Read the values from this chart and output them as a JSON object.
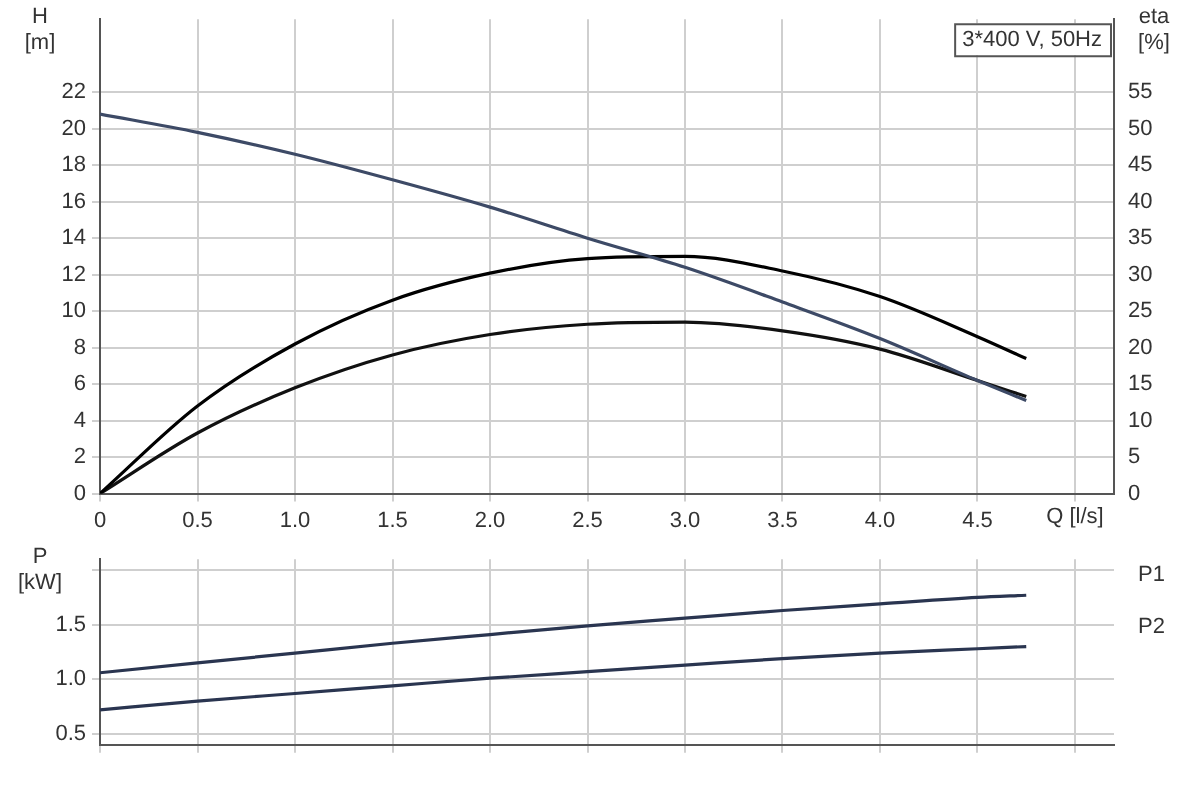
{
  "chart_data": [
    {
      "type": "line",
      "ylabel": "H [m]",
      "y2label": "eta [%]",
      "xlabel": "Q [l/s]",
      "annotations": [
        "3*400 V, 50Hz"
      ],
      "grid": true,
      "x": [
        0,
        0.5,
        1,
        1.5,
        2,
        2.5,
        3,
        3.5,
        4,
        4.5,
        4.75
      ],
      "series": [
        {
          "color": "#3d4a66",
          "values": [
            20.8,
            19.8,
            18.6,
            17.2,
            15.7,
            14.0,
            12.4,
            10.5,
            8.5,
            6.2,
            5.1
          ]
        },
        {
          "color": "#000000",
          "axis": "y2",
          "values": [
            0,
            12,
            20.5,
            26.5,
            30.2,
            32.2,
            32.5,
            30.5,
            27,
            21.5,
            18.5
          ]
        },
        {
          "color": "#111111",
          "axis": "y2",
          "values": [
            0,
            8.3,
            14.5,
            19,
            21.8,
            23.2,
            23.5,
            22.3,
            19.8,
            15.5,
            13.3
          ]
        }
      ],
      "xlim": [
        0,
        5.2
      ],
      "xticks": [
        0,
        0.5,
        {
          "value": 1,
          "label": "1.0"
        },
        1.5,
        {
          "value": 2,
          "label": "2.0"
        },
        2.5,
        {
          "value": 3,
          "label": "3.0"
        },
        3.5,
        {
          "value": 4,
          "label": "4.0"
        },
        4.5,
        {
          "value": 5,
          "label": null
        }
      ],
      "ylim": [
        0,
        26
      ],
      "yticks": [
        0,
        2,
        4,
        6,
        8,
        10,
        12,
        14,
        16,
        18,
        20,
        22
      ],
      "y2lim": [
        0,
        65
      ],
      "y2ticks": [
        0,
        5,
        10,
        15,
        20,
        25,
        30,
        35,
        40,
        45,
        50,
        55
      ]
    },
    {
      "type": "line",
      "ylabel": "P [kW]",
      "grid": true,
      "tick_labels": "y",
      "x": [
        0,
        0.5,
        1,
        1.5,
        2,
        2.5,
        3,
        3.5,
        4,
        4.5,
        4.75
      ],
      "series": [
        {
          "name": "P1",
          "color": "#2a3550",
          "values": [
            1.06,
            1.15,
            1.24,
            1.33,
            1.41,
            1.49,
            1.56,
            1.63,
            1.69,
            1.75,
            1.77
          ]
        },
        {
          "name": "P2",
          "color": "#2a3550",
          "values": [
            0.72,
            0.8,
            0.87,
            0.94,
            1.01,
            1.07,
            1.13,
            1.19,
            1.24,
            1.28,
            1.3
          ]
        }
      ],
      "xlim": [
        0,
        5.2
      ],
      "xticks": [
        0,
        0.5,
        1,
        1.5,
        2,
        2.5,
        3,
        3.5,
        4,
        4.5,
        5
      ],
      "ylim": [
        0.4,
        2.1
      ],
      "yticks": [
        0.5,
        {
          "value": 1,
          "label": "1.0"
        },
        1.5,
        {
          "value": 2,
          "label": null
        }
      ]
    }
  ]
}
